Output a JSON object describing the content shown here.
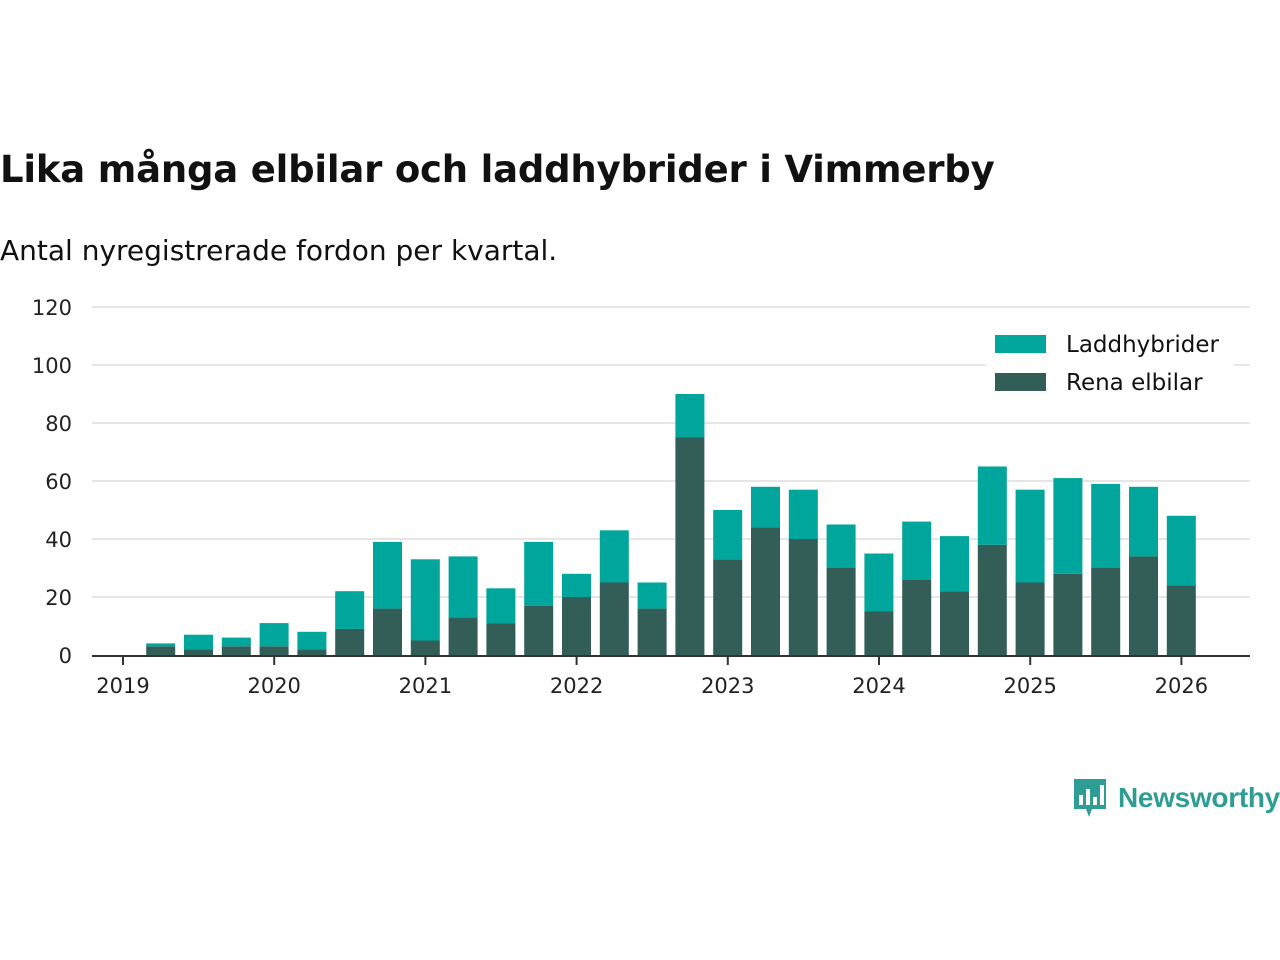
{
  "header": {
    "title": "Lika många elbilar och laddhybrider i Vimmerby",
    "subtitle": "Antal nyregistrerade fordon per kvartal."
  },
  "brand": {
    "name": "Newsworthy",
    "color": "#2e9e95"
  },
  "chart_data": {
    "type": "bar",
    "stacked": true,
    "title": "Lika många elbilar och laddhybrider i Vimmerby",
    "subtitle": "Antal nyregistrerade fordon per kvartal.",
    "xlabel": "",
    "ylabel": "",
    "ylim": [
      0,
      120
    ],
    "yticks": [
      0,
      20,
      40,
      60,
      80,
      100,
      120
    ],
    "xticks": [
      "2019",
      "2020",
      "2021",
      "2022",
      "2023",
      "2024",
      "2025",
      "2026"
    ],
    "grid": true,
    "legend_position": "top-right",
    "categories": [
      "2019 Q2",
      "2019 Q3",
      "2019 Q4",
      "2020 Q1",
      "2020 Q2",
      "2020 Q3",
      "2020 Q4",
      "2021 Q1",
      "2021 Q2",
      "2021 Q3",
      "2021 Q4",
      "2022 Q1",
      "2022 Q2",
      "2022 Q3",
      "2022 Q4",
      "2023 Q1",
      "2023 Q2",
      "2023 Q3",
      "2023 Q4",
      "2024 Q1",
      "2024 Q2",
      "2024 Q3",
      "2024 Q4",
      "2025 Q1",
      "2025 Q2",
      "2025 Q3",
      "2025 Q4",
      "2026 Q1"
    ],
    "series": [
      {
        "name": "Rena elbilar",
        "color": "#335e58",
        "values": [
          3,
          2,
          3,
          3,
          2,
          9,
          16,
          5,
          13,
          11,
          17,
          20,
          25,
          16,
          75,
          33,
          44,
          40,
          30,
          15,
          26,
          22,
          38,
          25,
          28,
          30,
          34,
          24
        ]
      },
      {
        "name": "Laddhybrider",
        "color": "#00a59b",
        "values": [
          1,
          5,
          3,
          8,
          6,
          13,
          23,
          28,
          21,
          12,
          22,
          8,
          18,
          9,
          15,
          17,
          14,
          17,
          15,
          20,
          20,
          19,
          27,
          32,
          33,
          29,
          24,
          24
        ]
      }
    ],
    "legend": [
      {
        "label": "Laddhybrider",
        "color": "#00a59b"
      },
      {
        "label": "Rena elbilar",
        "color": "#335e58"
      }
    ]
  }
}
